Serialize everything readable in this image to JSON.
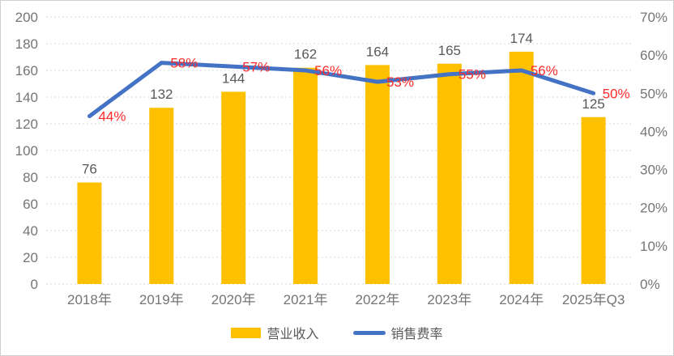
{
  "chart_data": {
    "type": "bar",
    "subtype": "combo-bar-line-dual-axis",
    "title": "",
    "xlabel": "",
    "ylabel": "",
    "categories": [
      "2018年",
      "2019年",
      "2020年",
      "2021年",
      "2022年",
      "2023年",
      "2024年",
      "2025年Q3"
    ],
    "series": [
      {
        "name": "营业收入",
        "type": "bar",
        "axis": "left",
        "color": "#FFC000",
        "label_color": "#595959",
        "values": [
          76,
          132,
          144,
          162,
          164,
          165,
          174,
          125
        ],
        "labels": [
          "76",
          "132",
          "144",
          "162",
          "164",
          "165",
          "174",
          "125"
        ]
      },
      {
        "name": "销售费率",
        "type": "line",
        "axis": "right",
        "color": "#4472C4",
        "label_color": "#FF2B2B",
        "values": [
          44,
          58,
          57,
          56,
          53,
          55,
          56,
          50
        ],
        "labels": [
          "44%",
          "58%",
          "57%",
          "56%",
          "53%",
          "55%",
          "56%",
          "50%"
        ]
      }
    ],
    "left_axis": {
      "min": 0,
      "max": 200,
      "step": 20,
      "ticks": [
        "200",
        "180",
        "160",
        "140",
        "120",
        "100",
        "80",
        "60",
        "40",
        "20",
        "0"
      ],
      "tick_color": "#757575"
    },
    "right_axis": {
      "min": 0,
      "max": 70,
      "step": 10,
      "ticks": [
        "70%",
        "60%",
        "50%",
        "40%",
        "30%",
        "20%",
        "10%",
        "0%"
      ],
      "tick_color": "#757575"
    },
    "x_axis": {
      "tick_color": "#757575"
    },
    "grid": true,
    "gridline_color": "#D8D8D8",
    "legend_position": "bottom"
  }
}
